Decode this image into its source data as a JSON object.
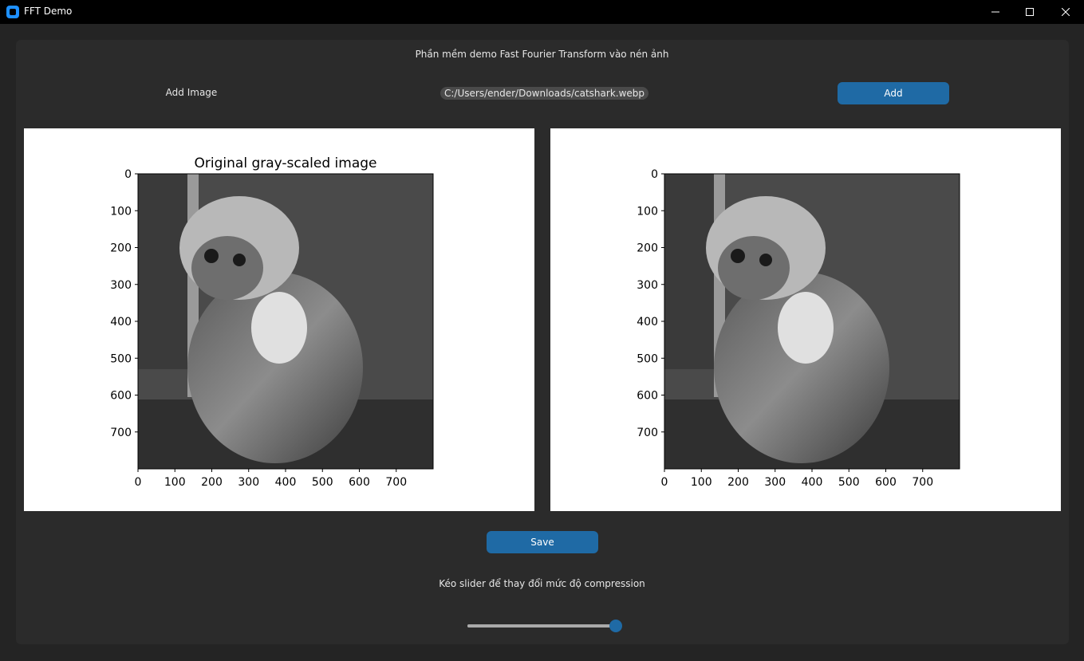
{
  "window": {
    "title": "FFT Demo"
  },
  "header": {
    "text": "Phần mềm demo Fast Fourier Transform vào nén ảnh"
  },
  "add_row": {
    "label": "Add Image",
    "path": "C:/Users/ender/Downloads/catshark.webp",
    "button": "Add"
  },
  "left_plot": {
    "title": "Original gray-scaled image",
    "y_ticks": [
      "0",
      "100",
      "200",
      "300",
      "400",
      "500",
      "600",
      "700"
    ],
    "x_ticks": [
      "0",
      "100",
      "200",
      "300",
      "400",
      "500",
      "600",
      "700"
    ]
  },
  "right_plot": {
    "title": "",
    "y_ticks": [
      "0",
      "100",
      "200",
      "300",
      "400",
      "500",
      "600",
      "700"
    ],
    "x_ticks": [
      "0",
      "100",
      "200",
      "300",
      "400",
      "500",
      "600",
      "700"
    ]
  },
  "image": {
    "description_icon": "image-placeholder-icon"
  },
  "save_button": "Save",
  "slider": {
    "label": "Kéo slider để thay đổi mức độ compression",
    "value": 1.0
  },
  "colors": {
    "accent": "#1f6aa5",
    "frame": "#2b2b2b",
    "background": "#242424"
  }
}
